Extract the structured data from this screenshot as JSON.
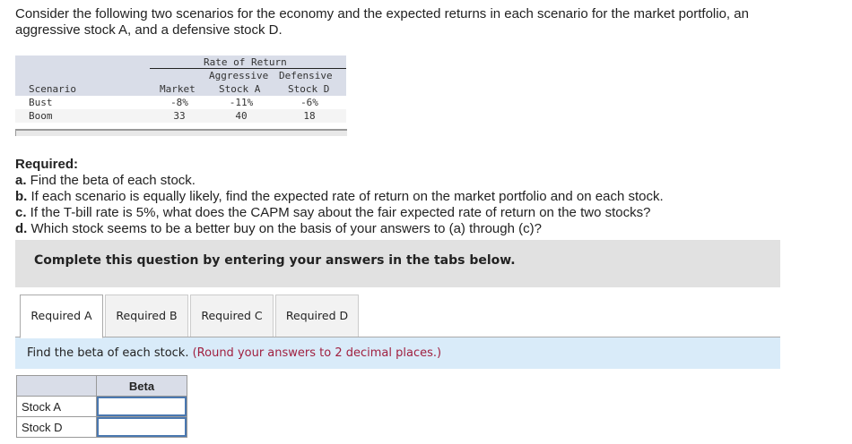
{
  "intro": "Consider the following two scenarios for the economy and the expected returns in each scenario for the market portfolio, an aggressive stock A, and a defensive stock D.",
  "returns_table": {
    "group_header": "Rate of Return",
    "headers": {
      "scenario": "Scenario",
      "market": "Market",
      "a1": "Aggressive",
      "a2": "Stock A",
      "d1": "Defensive",
      "d2": "Stock D"
    },
    "rows": [
      {
        "scenario": "Bust",
        "market": "-8%",
        "a": "-11%",
        "d": "-6%"
      },
      {
        "scenario": "Boom",
        "market": "33",
        "a": "40",
        "d": "18"
      }
    ]
  },
  "required": {
    "title": "Required:",
    "items": [
      {
        "letter": "a.",
        "text": " Find the beta of each stock."
      },
      {
        "letter": "b.",
        "text": " If each scenario is equally likely, find the expected rate of return on the market portfolio and on each stock."
      },
      {
        "letter": "c.",
        "text": " If the T-bill rate is 5%, what does the CAPM say about the fair expected rate of return on the two stocks?"
      },
      {
        "letter": "d.",
        "text": " Which stock seems to be a better buy on the basis of your answers to (a) through (c)?"
      }
    ]
  },
  "instruction": "Complete this question by entering your answers in the tabs below.",
  "tabs": [
    {
      "label": "Required A",
      "active": true
    },
    {
      "label": "Required B"
    },
    {
      "label": "Required C"
    },
    {
      "label": "Required D"
    }
  ],
  "prompt": {
    "text": "Find the beta of each stock.",
    "hint": "(Round your answers to 2 decimal places.)"
  },
  "answer_table": {
    "header": "Beta",
    "rows": [
      {
        "label": "Stock A",
        "value": ""
      },
      {
        "label": "Stock D",
        "value": ""
      }
    ]
  }
}
